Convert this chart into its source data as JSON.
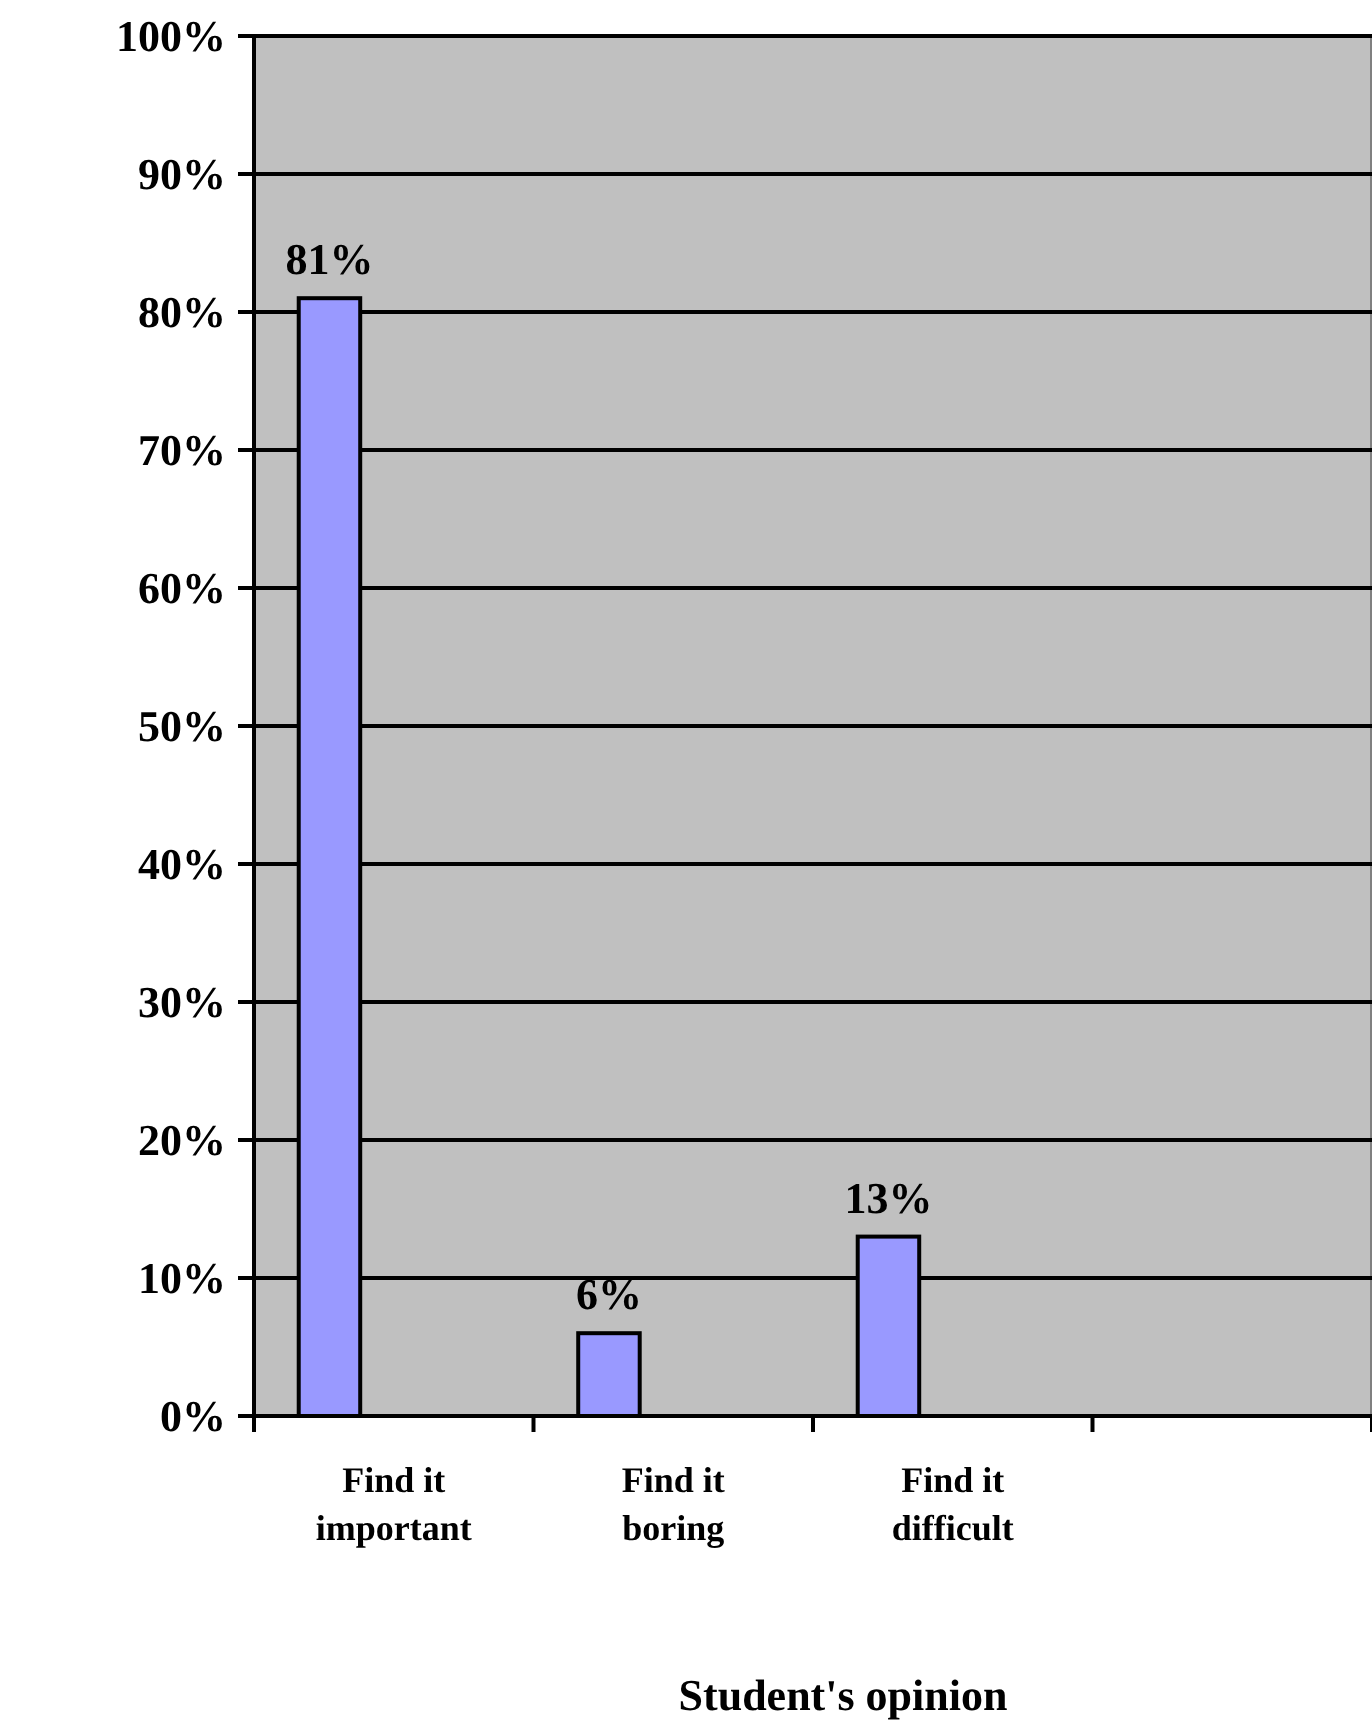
{
  "chart_data": {
    "type": "bar",
    "xlabel": "Student's opinion",
    "categories": [
      "Find it important",
      "Find it boring",
      "Find it difficult",
      null
    ],
    "values": [
      81,
      6,
      13,
      null
    ],
    "value_labels": [
      "81%",
      "6%",
      "13%",
      null
    ],
    "color": "#9999ff",
    "ylim": [
      0,
      100
    ],
    "yticks": [
      {
        "value": 0,
        "label": "0%"
      },
      {
        "value": 10,
        "label": "10%"
      },
      {
        "value": 20,
        "label": "20%"
      },
      {
        "value": 30,
        "label": "30%"
      },
      {
        "value": 40,
        "label": "40%"
      },
      {
        "value": 50,
        "label": "50%"
      },
      {
        "value": 60,
        "label": "60%"
      },
      {
        "value": 70,
        "label": "70%"
      },
      {
        "value": 80,
        "label": "80%"
      },
      {
        "value": 90,
        "label": "90%"
      },
      {
        "value": 100,
        "label": "100%"
      }
    ],
    "grid": "y"
  }
}
